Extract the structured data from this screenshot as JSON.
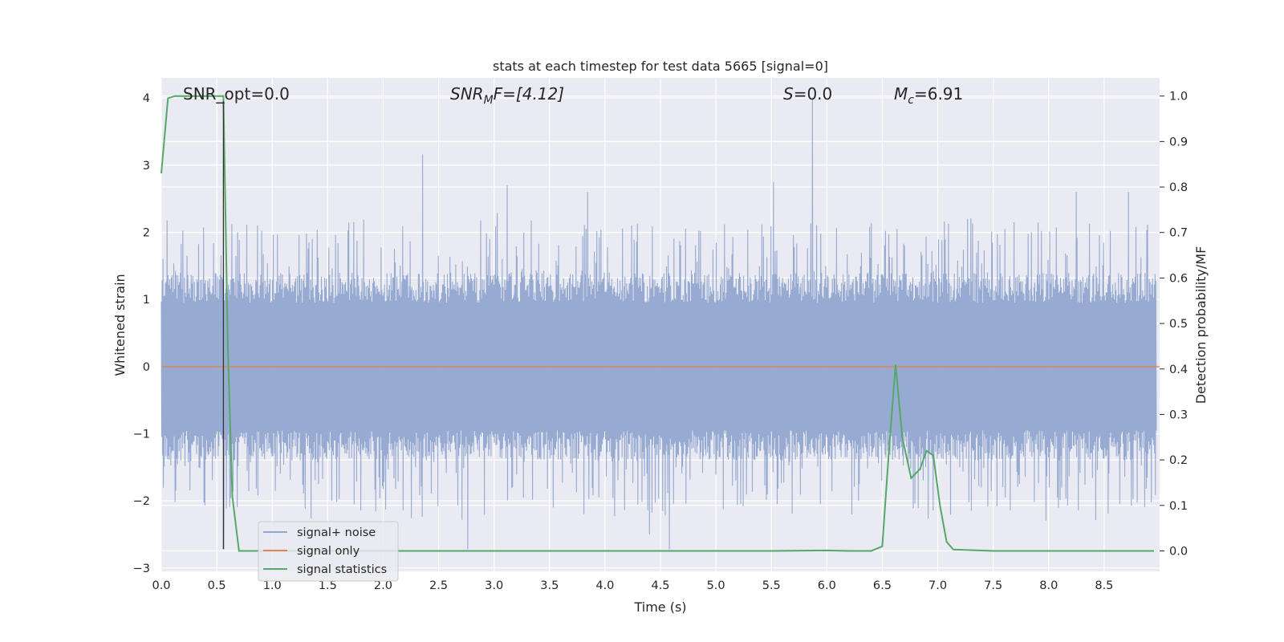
{
  "chart_data": {
    "type": "line",
    "title": "stats at each timestep for test data 5665 [signal=0]",
    "xlabel": "Time (s)",
    "ylabel_left": "Whitened strain",
    "ylabel_right": "Detection probability/MF",
    "xlim": [
      0,
      9.0
    ],
    "ylim_left": [
      -3.05,
      4.3
    ],
    "ylim_right": [
      -0.045,
      1.04
    ],
    "x_ticks": [
      "0.0",
      "0.5",
      "1.0",
      "1.5",
      "2.0",
      "2.5",
      "3.0",
      "3.5",
      "4.0",
      "4.5",
      "5.0",
      "5.5",
      "6.0",
      "6.5",
      "7.0",
      "7.5",
      "8.0",
      "8.5"
    ],
    "y_ticks_left": [
      "−3",
      "−2",
      "−1",
      "0",
      "1",
      "2",
      "3",
      "4"
    ],
    "y_ticks_right": [
      "0.0",
      "0.1",
      "0.2",
      "0.3",
      "0.4",
      "0.5",
      "0.6",
      "0.7",
      "0.8",
      "0.9",
      "1.0"
    ],
    "grid": true,
    "legend_position": "lower-left",
    "annotations": {
      "snr_opt": "SNR_opt=0.0",
      "snr_mf_sym": "SNR",
      "snr_mf_sub": "M",
      "snr_mf_rest": "F=[4.12]",
      "s_sym": "S",
      "s_rest": "=0.0",
      "mc_sym": "M",
      "mc_sub": "c",
      "mc_rest": "=6.91"
    },
    "series": [
      {
        "name": "signal+ noise",
        "color": "#92a6cf",
        "axis": "left",
        "description_values": {
          "typical_range": [
            -1.4,
            1.4
          ],
          "max": 4.0,
          "max_x": 5.87,
          "min": -2.72,
          "min_x": 0.56
        },
        "peaks": [
          {
            "x": 0.56,
            "y": -2.72
          },
          {
            "x": 2.35,
            "y": 3.16
          },
          {
            "x": 3.12,
            "y": 2.7
          },
          {
            "x": 3.84,
            "y": 2.6
          },
          {
            "x": 5.52,
            "y": 2.75
          },
          {
            "x": 5.87,
            "y": 4.0
          },
          {
            "x": 8.25,
            "y": 2.6
          },
          {
            "x": 8.72,
            "y": 2.6
          },
          {
            "x": 2.76,
            "y": -2.72
          },
          {
            "x": 4.58,
            "y": -2.72
          },
          {
            "x": 4.4,
            "y": -2.5
          }
        ]
      },
      {
        "name": "signal only",
        "color": "#dd8452",
        "axis": "left",
        "x": [
          0,
          9.0
        ],
        "y": [
          0,
          0
        ]
      },
      {
        "name": "signal statistics",
        "color": "#55a868",
        "axis": "right",
        "x": [
          0.0,
          0.06,
          0.12,
          0.2,
          0.3,
          0.4,
          0.5,
          0.56,
          0.6,
          0.64,
          0.7,
          1.0,
          2.0,
          3.0,
          4.0,
          5.0,
          5.5,
          6.0,
          6.2,
          6.4,
          6.5,
          6.56,
          6.62,
          6.68,
          6.76,
          6.84,
          6.9,
          6.96,
          7.02,
          7.08,
          7.14,
          7.5,
          8.0,
          8.5,
          8.95
        ],
        "y": [
          0.83,
          0.995,
          1.0,
          1.0,
          1.0,
          1.0,
          1.0,
          1.0,
          0.45,
          0.12,
          0.0,
          0.0,
          0.0,
          0.0,
          0.0,
          0.0,
          0.0,
          0.001,
          0.0,
          0.0,
          0.01,
          0.22,
          0.41,
          0.25,
          0.16,
          0.18,
          0.22,
          0.21,
          0.1,
          0.02,
          0.003,
          0.0,
          0.0,
          0.0,
          0.0
        ]
      }
    ]
  }
}
